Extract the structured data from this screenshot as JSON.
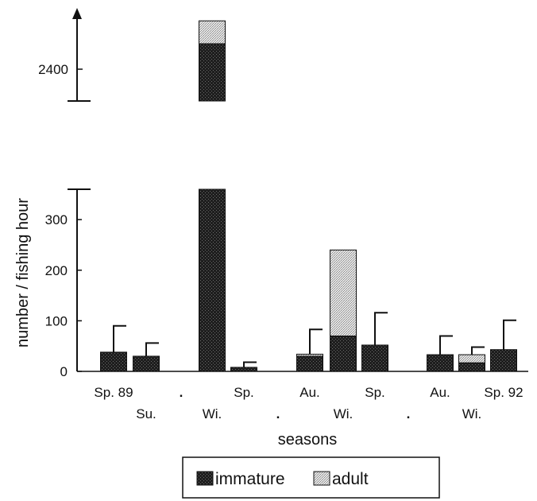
{
  "chart_data": {
    "type": "bar",
    "stacked": true,
    "broken_axis": true,
    "xlabel": "seasons",
    "ylabel": "number / fishing hour",
    "y_ticks_lower": [
      0,
      100,
      200,
      300
    ],
    "y_ticks_upper": [
      2400
    ],
    "ylim_lower": [
      0,
      360
    ],
    "ylim_upper_visible": [
      2330,
      2500
    ],
    "grid": false,
    "legend_position": "bottom-center",
    "series_names": [
      "immature",
      "adult"
    ],
    "categories": [
      {
        "label": "Sp. 89",
        "row": 1
      },
      {
        "label": "Su.",
        "row": 2
      },
      {
        "label": ".",
        "row": 1
      },
      {
        "label": "Wi.",
        "row": 2
      },
      {
        "label": "Sp.",
        "row": 1
      },
      {
        "label": ".",
        "row": 2
      },
      {
        "label": "Au.",
        "row": 1
      },
      {
        "label": "Wi.",
        "row": 2
      },
      {
        "label": "Sp.",
        "row": 1
      },
      {
        "label": ".",
        "row": 2
      },
      {
        "label": "Au.",
        "row": 1
      },
      {
        "label": "Wi.",
        "row": 2
      },
      {
        "label": "Sp. 92",
        "row": 1
      }
    ],
    "series": [
      {
        "name": "immature",
        "values": [
          38,
          30,
          null,
          2450,
          8,
          null,
          30,
          70,
          52,
          null,
          33,
          17,
          43
        ]
      },
      {
        "name": "adult",
        "values": [
          0,
          0,
          null,
          48,
          0,
          null,
          4,
          170,
          0,
          null,
          0,
          16,
          0
        ]
      }
    ],
    "error_bar_tops": [
      90,
      56,
      null,
      null,
      18,
      null,
      83,
      null,
      116,
      null,
      70,
      48,
      101
    ],
    "colors": {
      "immature": "#262626",
      "adult": "#cfcfcf",
      "axis": "#111111"
    }
  }
}
